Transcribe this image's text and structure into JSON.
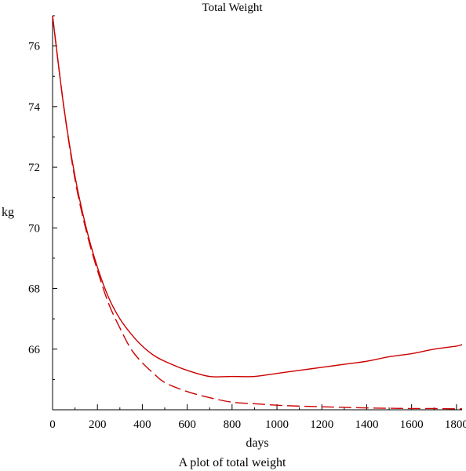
{
  "chart_data": {
    "type": "line",
    "title": "Total Weight",
    "caption": "A plot of total weight",
    "xlabel": "days",
    "ylabel": "kg",
    "xlim": [
      0,
      1825
    ],
    "ylim": [
      64,
      77
    ],
    "x_ticks": [
      0,
      200,
      400,
      600,
      800,
      1000,
      1200,
      1400,
      1600,
      1800
    ],
    "x_minor_step": 100,
    "y_ticks": [
      66,
      68,
      70,
      72,
      74,
      76
    ],
    "y_minor_step": 1,
    "grid": false,
    "legend": "none",
    "series": [
      {
        "style": "solid",
        "color": "#cc0000",
        "x": [
          0,
          50,
          100,
          150,
          200,
          250,
          300,
          350,
          400,
          450,
          500,
          600,
          700,
          800,
          900,
          1000,
          1100,
          1200,
          1300,
          1400,
          1500,
          1600,
          1700,
          1800,
          1825
        ],
        "y": [
          77.0,
          74.0,
          71.7,
          70.0,
          68.7,
          67.7,
          67.0,
          66.5,
          66.1,
          65.8,
          65.6,
          65.3,
          65.1,
          65.1,
          65.1,
          65.2,
          65.3,
          65.4,
          65.5,
          65.6,
          65.75,
          65.85,
          66.0,
          66.1,
          66.15
        ]
      },
      {
        "style": "dashed",
        "color": "#cc0000",
        "x": [
          0,
          50,
          100,
          150,
          200,
          250,
          300,
          350,
          400,
          450,
          500,
          600,
          700,
          800,
          900,
          1000,
          1100,
          1200,
          1300,
          1400,
          1500,
          1600,
          1700,
          1800,
          1825
        ],
        "y": [
          77.0,
          74.0,
          71.6,
          69.9,
          68.6,
          67.5,
          66.7,
          66.0,
          65.55,
          65.2,
          64.9,
          64.6,
          64.4,
          64.25,
          64.2,
          64.15,
          64.12,
          64.1,
          64.08,
          64.06,
          64.05,
          64.04,
          64.04,
          64.03,
          64.03
        ]
      }
    ]
  }
}
